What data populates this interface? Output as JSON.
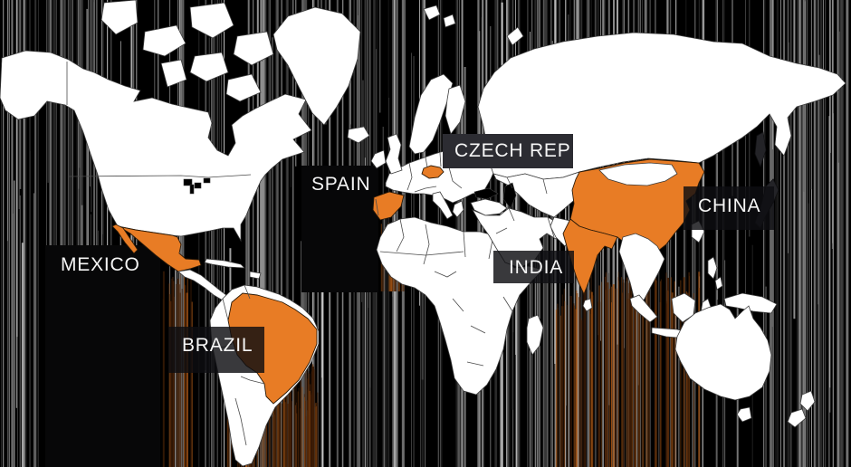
{
  "map": {
    "description": "World map infographic with six highlighted countries",
    "highlighted_countries": [
      "Mexico",
      "Brazil",
      "Spain",
      "Czech Republic",
      "India",
      "China"
    ],
    "colors": {
      "highlight": "#e87c25",
      "land": "#ffffff",
      "ocean": "#000000",
      "border": "#4b4b4b",
      "label_text": "#f5f5f5",
      "box_solid": "#2c2c32",
      "box_dark": "#070708",
      "box_translucent": "rgba(13,13,17,0.82)"
    }
  },
  "labels": {
    "mexico": {
      "text": "MEXICO"
    },
    "brazil": {
      "text": "BRAZIL"
    },
    "spain": {
      "text": "SPAIN"
    },
    "czech": {
      "text": "CZECH REP"
    },
    "india": {
      "text": "INDIA"
    },
    "china": {
      "text": "CHINA"
    }
  }
}
